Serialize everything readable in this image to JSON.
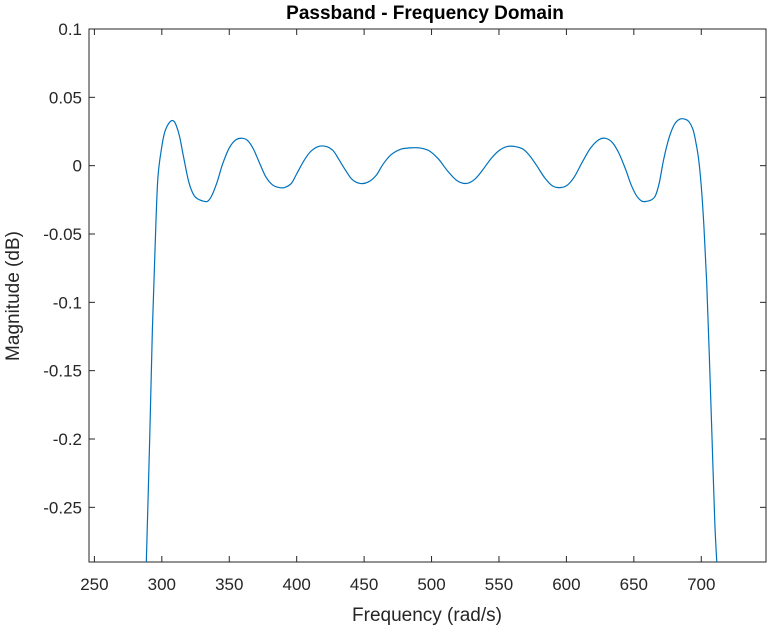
{
  "chart_data": {
    "type": "line",
    "title": "Passband - Frequency Domain",
    "xlabel": "Frequency (rad/s)",
    "ylabel": "Magnitude (dB)",
    "xlim": [
      246,
      748
    ],
    "ylim": [
      -0.29,
      0.1
    ],
    "x_ticks": [
      250,
      300,
      350,
      400,
      450,
      500,
      550,
      600,
      650,
      700
    ],
    "x_tick_labels": [
      "250",
      "300",
      "350",
      "400",
      "450",
      "500",
      "550",
      "600",
      "650",
      "700"
    ],
    "y_ticks": [
      0.1,
      0.05,
      0,
      -0.05,
      -0.1,
      -0.15,
      -0.2,
      -0.25
    ],
    "y_tick_labels": [
      "0.1",
      "0.05",
      "0",
      "-0.05",
      "-0.1",
      "-0.15",
      "-0.2",
      "-0.25"
    ],
    "grid": false,
    "box": true,
    "colors": {
      "line": "#0072BD",
      "axes": "#262626"
    },
    "series": [
      {
        "x": [
          288.5,
          291,
          293,
          295,
          297,
          300,
          302,
          304,
          306,
          308,
          310,
          313,
          316,
          320,
          324,
          328,
          331,
          334,
          337,
          341,
          345,
          350,
          355,
          360,
          364,
          368,
          372,
          377,
          382,
          387,
          391,
          396,
          400,
          405,
          410,
          416,
          422,
          427,
          431,
          436,
          441,
          447,
          453,
          459,
          464,
          470,
          477,
          484,
          491,
          498,
          505,
          512,
          519,
          526,
          532,
          538,
          544,
          550,
          556,
          562,
          568,
          573,
          578,
          584,
          590,
          596,
          601,
          606,
          612,
          618,
          624,
          629,
          634,
          639,
          644,
          648,
          652,
          656,
          660,
          663,
          666,
          669,
          672,
          676,
          680,
          684,
          688,
          691,
          694,
          696,
          698,
          700,
          702,
          704,
          706,
          708,
          710,
          711.5
        ],
        "y": [
          -0.29,
          -0.2,
          -0.12,
          -0.06,
          -0.01,
          0.014,
          0.024,
          0.029,
          0.032,
          0.033,
          0.031,
          0.022,
          0.007,
          -0.012,
          -0.022,
          -0.025,
          -0.026,
          -0.026,
          -0.022,
          -0.012,
          0.001,
          0.013,
          0.019,
          0.02,
          0.018,
          0.012,
          0.003,
          -0.008,
          -0.014,
          -0.016,
          -0.016,
          -0.013,
          -0.006,
          0.003,
          0.01,
          0.014,
          0.014,
          0.011,
          0.005,
          -0.003,
          -0.01,
          -0.013,
          -0.012,
          -0.007,
          0.001,
          0.008,
          0.012,
          0.013,
          0.013,
          0.011,
          0.005,
          -0.004,
          -0.011,
          -0.013,
          -0.01,
          -0.003,
          0.005,
          0.011,
          0.014,
          0.014,
          0.012,
          0.007,
          0.0,
          -0.009,
          -0.015,
          -0.016,
          -0.014,
          -0.008,
          0.003,
          0.013,
          0.019,
          0.02,
          0.017,
          0.009,
          -0.003,
          -0.014,
          -0.022,
          -0.026,
          -0.026,
          -0.025,
          -0.022,
          -0.012,
          0.004,
          0.02,
          0.03,
          0.034,
          0.034,
          0.032,
          0.026,
          0.017,
          0.005,
          -0.015,
          -0.045,
          -0.085,
          -0.14,
          -0.2,
          -0.26,
          -0.29
        ]
      }
    ]
  }
}
